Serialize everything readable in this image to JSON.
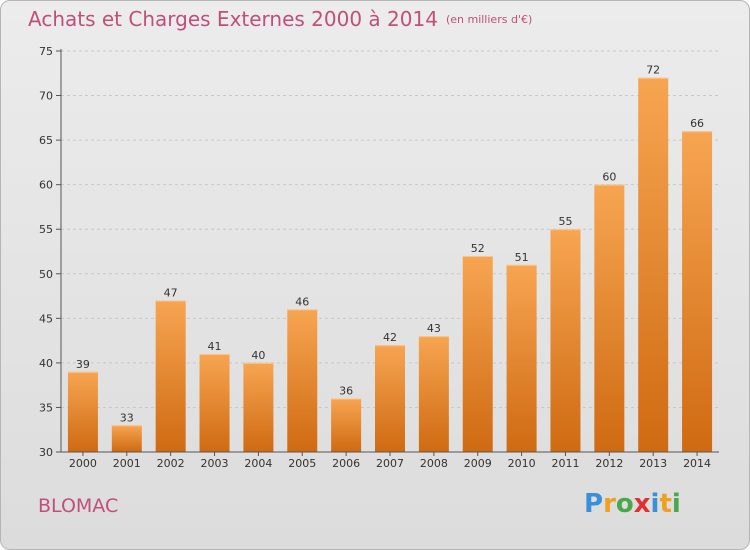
{
  "title": "Achats et Charges Externes 2000 à 2014",
  "unit_label": "(en milliers d'€)",
  "city": "BLOMAC",
  "logo": {
    "text": "Proxiti",
    "letters": [
      {
        "ch": "P",
        "color": "#3a8fd8"
      },
      {
        "ch": "r",
        "color": "#f0a020"
      },
      {
        "ch": "o",
        "color": "#4aa84a"
      },
      {
        "ch": "x",
        "color": "#e03030"
      },
      {
        "ch": "i",
        "color": "#3a8fd8"
      },
      {
        "ch": "t",
        "color": "#f0a020"
      },
      {
        "ch": "i",
        "color": "#4aa84a"
      }
    ]
  },
  "colors": {
    "title": "#c0507a",
    "bar_top": "#f7a552",
    "bar_bottom": "#cf6a12",
    "grid": "#c8c8c8",
    "axis": "#555555",
    "text": "#333333"
  },
  "chart_data": {
    "type": "bar",
    "categories": [
      "2000",
      "2001",
      "2002",
      "2003",
      "2004",
      "2005",
      "2006",
      "2007",
      "2008",
      "2009",
      "2010",
      "2011",
      "2012",
      "2013",
      "2014"
    ],
    "values": [
      39,
      33,
      47,
      41,
      40,
      46,
      36,
      42,
      43,
      52,
      51,
      55,
      60,
      72,
      66
    ],
    "ylim": [
      30,
      75
    ],
    "yticks": [
      30,
      35,
      40,
      45,
      50,
      55,
      60,
      65,
      70,
      75
    ],
    "grid": "horizontal dashed",
    "data_labels": true
  }
}
